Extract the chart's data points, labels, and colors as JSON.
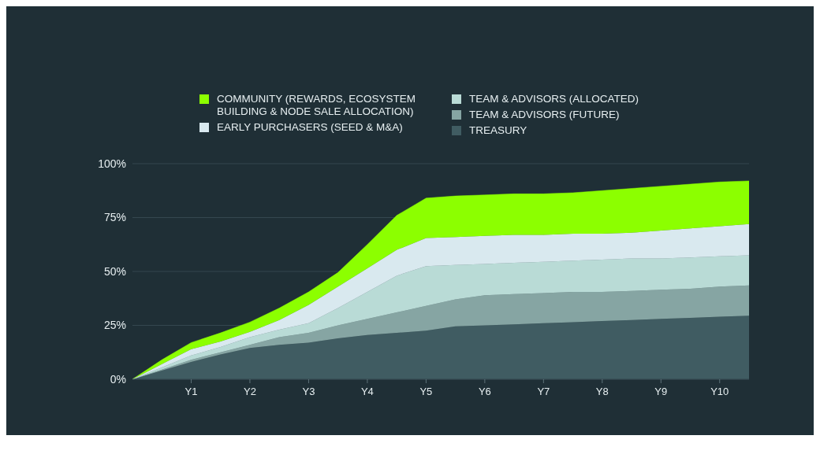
{
  "chart_data": {
    "type": "area",
    "stacked": true,
    "categories": [
      null,
      null,
      "Y1",
      null,
      "Y2",
      null,
      "Y3",
      null,
      "Y4",
      null,
      "Y5",
      null,
      "Y6",
      null,
      "Y7",
      null,
      "Y8",
      null,
      "Y9",
      null,
      "Y10",
      null
    ],
    "series": [
      {
        "name": "TREASURY",
        "color": "#405c62",
        "values": [
          0,
          4,
          8,
          11.5,
          14.5,
          16,
          17,
          19,
          20.5,
          21.5,
          22.5,
          24.5,
          25,
          25.5,
          26,
          26.5,
          27,
          27.5,
          28,
          28.5,
          29,
          29.5
        ]
      },
      {
        "name": "TEAM & ADVISORS (FUTURE)",
        "color": "#86a5a3",
        "values": [
          0,
          0.5,
          1,
          1,
          1.5,
          3.5,
          4.5,
          6,
          7.5,
          9.5,
          11.5,
          12.5,
          14,
          14,
          14,
          14,
          13.5,
          13.5,
          13.5,
          13.5,
          14,
          14
        ]
      },
      {
        "name": "TEAM & ADVISORS (ALLOCATED)",
        "color": "#b9dbd6",
        "values": [
          0,
          1,
          2,
          2.5,
          3.5,
          3.5,
          4.5,
          8,
          12.5,
          17,
          18.5,
          16,
          14.5,
          14.5,
          14.5,
          14.5,
          15,
          15,
          14.5,
          14.5,
          14,
          14
        ]
      },
      {
        "name": "EARLY PURCHASERS (SEED & M&A)",
        "color": "#d9e9ef",
        "values": [
          0,
          1.5,
          3,
          2.5,
          2.5,
          4.5,
          8.5,
          10,
          11,
          12,
          13,
          13,
          13,
          13,
          12.5,
          12.5,
          12,
          12,
          13,
          13.5,
          14,
          14.5
        ]
      },
      {
        "name": "COMMUNITY (REWARDS, ECOSYSTEM BUILDING & NODE SALE ALLOCATION)",
        "color": "#8cff00",
        "values": [
          0,
          2,
          3,
          4,
          4.5,
          5.5,
          6,
          6.5,
          11,
          16,
          18.5,
          19,
          19,
          19,
          19,
          19,
          20,
          20.5,
          20.5,
          20.5,
          20.5,
          20
        ]
      }
    ],
    "ylim": [
      0,
      100
    ],
    "yticks": [
      {
        "value": 0,
        "label": "0%"
      },
      {
        "value": 25,
        "label": "25%"
      },
      {
        "value": 50,
        "label": "50%"
      },
      {
        "value": 75,
        "label": "75%"
      },
      {
        "value": 100,
        "label": "100%"
      }
    ],
    "grid": "y",
    "legend": "top"
  }
}
